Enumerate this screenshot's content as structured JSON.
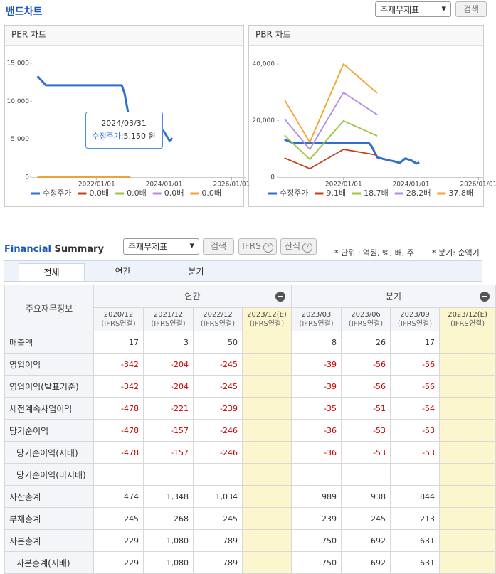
{
  "header": {
    "title": "밴드차트",
    "select": "주재무제표",
    "button": "검색"
  },
  "chart_data": [
    {
      "type": "line",
      "title": "PER 차트",
      "xlim": [
        "2020/02/01",
        "2026/06/01"
      ],
      "xticks": [
        "2022/01/01",
        "2024/01/01",
        "2026/01/01"
      ],
      "ylim": [
        0,
        15000
      ],
      "yticks": [
        0,
        {
          "value": 5000,
          "label": "5,000"
        },
        {
          "value": 10000,
          "label": "10,000"
        },
        {
          "value": 15000,
          "label": "15,000"
        }
      ],
      "grid": false,
      "series": [
        {
          "name": "수정주가",
          "color": "#2f6fd3",
          "x": [
            "2020/03/31",
            "2020/06/30",
            "2021/06/30",
            "2022/09/30",
            "2022/10/31",
            "2022/11/30",
            "2022/12/31",
            "2023/02/28",
            "2023/04/30",
            "2023/06/30",
            "2023/08/31",
            "2023/10/31",
            "2023/12/31",
            "2024/02/29",
            "2024/03/31"
          ],
          "values": [
            13300,
            12100,
            12100,
            12100,
            11000,
            9000,
            7000,
            6500,
            6000,
            5600,
            5000,
            6600,
            6000,
            4800,
            5150
          ]
        },
        {
          "name": "0.0배",
          "color": "#c8401a",
          "x": [
            "2020/03/31",
            "2020/12/31",
            "2021/12/31",
            "2022/12/31"
          ],
          "values": [
            0,
            0,
            0,
            0
          ]
        },
        {
          "name": "0.0배",
          "color": "#9bc53d",
          "x": [
            "2020/03/31",
            "2020/12/31",
            "2021/12/31",
            "2022/12/31"
          ],
          "values": [
            0,
            0,
            0,
            0
          ]
        },
        {
          "name": "0.0배",
          "color": "#b58be0",
          "x": [
            "2020/03/31",
            "2020/12/31",
            "2021/12/31",
            "2022/12/31"
          ],
          "values": [
            0,
            0,
            0,
            0
          ]
        },
        {
          "name": "0.0배",
          "color": "#f4a32a",
          "x": [
            "2020/03/31",
            "2020/12/31",
            "2021/12/31",
            "2022/12/31"
          ],
          "values": [
            0,
            0,
            0,
            0
          ]
        }
      ],
      "tooltip": {
        "date": "2024/03/31",
        "series": "수정주가:",
        "value": "5,150 원"
      }
    },
    {
      "type": "line",
      "title": "PBR 차트",
      "xlim": [
        "2020/02/01",
        "2026/03/01"
      ],
      "xticks": [
        "2022/01/01",
        "2024/01/01",
        "2026/01/01"
      ],
      "ylim": [
        0,
        40000
      ],
      "yticks": [
        0,
        {
          "value": 20000,
          "label": "20,000"
        },
        {
          "value": 40000,
          "label": "40,000"
        }
      ],
      "grid": false,
      "series": [
        {
          "name": "수정주가",
          "color": "#2f6fd3",
          "x": [
            "2020/03/31",
            "2020/06/30",
            "2021/06/30",
            "2022/09/30",
            "2022/10/31",
            "2022/11/30",
            "2022/12/31",
            "2023/02/28",
            "2023/04/30",
            "2023/06/30",
            "2023/08/31",
            "2023/10/31",
            "2023/12/31",
            "2024/02/29",
            "2024/03/31"
          ],
          "values": [
            13300,
            12100,
            12100,
            12100,
            11000,
            9000,
            7000,
            6500,
            6000,
            5600,
            5000,
            6600,
            6000,
            4800,
            5150
          ]
        },
        {
          "name": "9.1배",
          "color": "#c8401a",
          "x": [
            "2020/03/31",
            "2020/12/31",
            "2021/12/31",
            "2022/12/31"
          ],
          "values": [
            6800,
            3000,
            9800,
            7800
          ]
        },
        {
          "name": "18.7배",
          "color": "#9bc53d",
          "x": [
            "2020/03/31",
            "2020/12/31",
            "2021/12/31",
            "2022/12/31"
          ],
          "values": [
            14800,
            6300,
            19900,
            14600
          ]
        },
        {
          "name": "28.2배",
          "color": "#b58be0",
          "x": [
            "2020/03/31",
            "2020/12/31",
            "2021/12/31",
            "2022/12/31"
          ],
          "values": [
            20600,
            9800,
            29900,
            22100
          ]
        },
        {
          "name": "37.8배",
          "color": "#f4a32a",
          "x": [
            "2020/03/31",
            "2020/12/31",
            "2021/12/31",
            "2022/12/31"
          ],
          "values": [
            27400,
            12300,
            40000,
            29700
          ]
        }
      ]
    }
  ],
  "summary": {
    "title_a": "Financial",
    "title_b": "Summary",
    "select": "주재무제표",
    "search": "검색",
    "ifrs": "IFRS",
    "formula": "산식",
    "unit_note": "* 단위 : 억원, %, 배, 주",
    "quarter_note": "* 분기: 순액기",
    "tabs": [
      "전체",
      "연간",
      "분기"
    ],
    "table": {
      "corner": "주요재무정보",
      "groups": [
        "연간",
        "분기"
      ],
      "periods": [
        "2020/12",
        "2021/12",
        "2022/12",
        "2023/12(E)",
        "2023/03",
        "2023/06",
        "2023/09",
        "2023/12(E)"
      ],
      "basis": [
        "(IFRS연결)",
        "(IFRS연결)",
        "(IFRS연결)",
        "(IFRS연결)",
        "(IFRS연결)",
        "(IFRS연결)",
        "(IFRS연결)",
        "(IFRS연결)"
      ],
      "rows": [
        {
          "label": "매출액",
          "values": [
            "17",
            "3",
            "50",
            null,
            "8",
            "26",
            "17",
            null
          ]
        },
        {
          "label": "영업이익",
          "values": [
            "-342",
            "-204",
            "-245",
            null,
            "-39",
            "-56",
            "-56",
            null
          ]
        },
        {
          "label": "영업이익(발표기준)",
          "values": [
            "-342",
            "-204",
            "-245",
            null,
            "-39",
            "-56",
            "-56",
            null
          ]
        },
        {
          "label": "세전계속사업이익",
          "values": [
            "-478",
            "-221",
            "-239",
            null,
            "-35",
            "-51",
            "-54",
            null
          ]
        },
        {
          "label": "당기순이익",
          "values": [
            "-478",
            "-157",
            "-246",
            null,
            "-36",
            "-53",
            "-53",
            null
          ]
        },
        {
          "label": "당기순이익(지배)",
          "indent": true,
          "values": [
            "-478",
            "-157",
            "-246",
            null,
            "-36",
            "-53",
            "-53",
            null
          ]
        },
        {
          "label": "당기순이익(비지배)",
          "indent": true,
          "values": [
            null,
            null,
            null,
            null,
            null,
            null,
            null,
            null
          ]
        },
        {
          "label": "자산총계",
          "values": [
            "474",
            "1,348",
            "1,034",
            null,
            "989",
            "938",
            "844",
            null
          ]
        },
        {
          "label": "부채총계",
          "values": [
            "245",
            "268",
            "245",
            null,
            "239",
            "245",
            "213",
            null
          ]
        },
        {
          "label": "자본총계",
          "values": [
            "229",
            "1,080",
            "789",
            null,
            "750",
            "692",
            "631",
            null
          ]
        },
        {
          "label": "자본총계(지배)",
          "indent": true,
          "values": [
            "229",
            "1,080",
            "789",
            null,
            "750",
            "692",
            "631",
            null
          ]
        }
      ]
    }
  }
}
